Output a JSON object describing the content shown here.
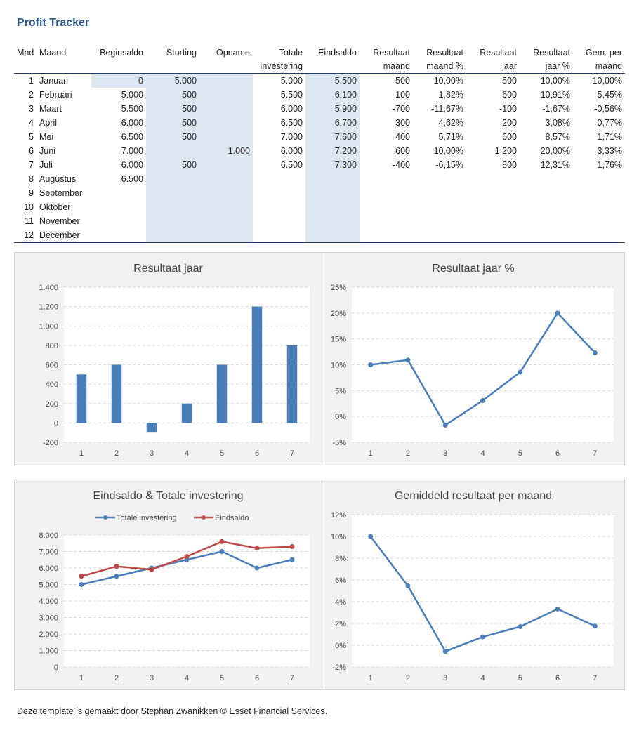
{
  "title": "Profit Tracker",
  "footer": "Deze template is gemaakt door Stephan Zwanikken © Esset Financial Services.",
  "colors": {
    "title": "#2f5a8f",
    "series_blue": "#4a7ebb",
    "series_red": "#be4b48",
    "shade": "#dde7f1"
  },
  "table": {
    "headers_top": [
      "Mnd",
      "Maand",
      "Beginsaldo",
      "Storting",
      "Opname",
      "Totale",
      "Eindsaldo",
      "Resultaat",
      "Resultaat",
      "Resultaat",
      "Resultaat",
      "Gem. per"
    ],
    "headers_bottom": [
      "",
      "",
      "",
      "",
      "",
      "investering",
      "",
      "maand",
      "maand %",
      "jaar",
      "jaar %",
      "maand"
    ],
    "rows": [
      [
        "1",
        "Januari",
        "0",
        "5.000",
        "",
        "5.000",
        "5.500",
        "500",
        "10,00%",
        "500",
        "10,00%",
        "10,00%"
      ],
      [
        "2",
        "Februari",
        "5.000",
        "500",
        "",
        "5.500",
        "6.100",
        "100",
        "1,82%",
        "600",
        "10,91%",
        "5,45%"
      ],
      [
        "3",
        "Maart",
        "5.500",
        "500",
        "",
        "6.000",
        "5.900",
        "-700",
        "-11,67%",
        "-100",
        "-1,67%",
        "-0,56%"
      ],
      [
        "4",
        "April",
        "6.000",
        "500",
        "",
        "6.500",
        "6.700",
        "300",
        "4,62%",
        "200",
        "3,08%",
        "0,77%"
      ],
      [
        "5",
        "Mei",
        "6.500",
        "500",
        "",
        "7.000",
        "7.600",
        "400",
        "5,71%",
        "600",
        "8,57%",
        "1,71%"
      ],
      [
        "6",
        "Juni",
        "7.000",
        "",
        "1.000",
        "6.000",
        "7.200",
        "600",
        "10,00%",
        "1.200",
        "20,00%",
        "3,33%"
      ],
      [
        "7",
        "Juli",
        "6.000",
        "500",
        "",
        "6.500",
        "7.300",
        "-400",
        "-6,15%",
        "800",
        "12,31%",
        "1,76%"
      ],
      [
        "8",
        "Augustus",
        "6.500",
        "",
        "",
        "",
        "",
        "",
        "",
        "",
        "",
        ""
      ],
      [
        "9",
        "September",
        "",
        "",
        "",
        "",
        "",
        "",
        "",
        "",
        "",
        ""
      ],
      [
        "10",
        "Oktober",
        "",
        "",
        "",
        "",
        "",
        "",
        "",
        "",
        "",
        ""
      ],
      [
        "11",
        "November",
        "",
        "",
        "",
        "",
        "",
        "",
        "",
        "",
        "",
        ""
      ],
      [
        "12",
        "December",
        "",
        "",
        "",
        "",
        "",
        "",
        "",
        "",
        "",
        ""
      ]
    ]
  },
  "chart_data": [
    {
      "type": "bar",
      "title": "Resultaat jaar",
      "categories": [
        "1",
        "2",
        "3",
        "4",
        "5",
        "6",
        "7"
      ],
      "values": [
        500,
        600,
        -100,
        200,
        600,
        1200,
        800
      ],
      "ylim": [
        -200,
        1400
      ],
      "yticks": [
        -200,
        0,
        200,
        400,
        600,
        800,
        1000,
        1200,
        1400
      ],
      "ytick_labels": [
        "-200",
        "0",
        "200",
        "400",
        "600",
        "800",
        "1.000",
        "1.200",
        "1.400"
      ],
      "color": "#4a7ebb"
    },
    {
      "type": "line",
      "title": "Resultaat jaar %",
      "categories": [
        "1",
        "2",
        "3",
        "4",
        "5",
        "6",
        "7"
      ],
      "values": [
        10.0,
        10.91,
        -1.67,
        3.08,
        8.57,
        20.0,
        12.31
      ],
      "ylim": [
        -5,
        25
      ],
      "yticks": [
        -5,
        0,
        5,
        10,
        15,
        20,
        25
      ],
      "ytick_labels": [
        "-5%",
        "0%",
        "5%",
        "10%",
        "15%",
        "20%",
        "25%"
      ],
      "color": "#4a7ebb"
    },
    {
      "type": "line",
      "title": "Eindsaldo & Totale investering",
      "categories": [
        "1",
        "2",
        "3",
        "4",
        "5",
        "6",
        "7"
      ],
      "series": [
        {
          "name": "Totale investering",
          "values": [
            5000,
            5500,
            6000,
            6500,
            7000,
            6000,
            6500
          ],
          "color": "#4a7ebb"
        },
        {
          "name": "Eindsaldo",
          "values": [
            5500,
            6100,
            5900,
            6700,
            7600,
            7200,
            7300
          ],
          "color": "#be4b48"
        }
      ],
      "legend": "top",
      "ylim": [
        0,
        8000
      ],
      "yticks": [
        0,
        1000,
        2000,
        3000,
        4000,
        5000,
        6000,
        7000,
        8000
      ],
      "ytick_labels": [
        "0",
        "1.000",
        "2.000",
        "3.000",
        "4.000",
        "5.000",
        "6.000",
        "7.000",
        "8.000"
      ]
    },
    {
      "type": "line",
      "title": "Gemiddeld resultaat per maand",
      "categories": [
        "1",
        "2",
        "3",
        "4",
        "5",
        "6",
        "7"
      ],
      "values": [
        10.0,
        5.45,
        -0.56,
        0.77,
        1.71,
        3.33,
        1.76
      ],
      "ylim": [
        -2,
        12
      ],
      "yticks": [
        -2,
        0,
        2,
        4,
        6,
        8,
        10,
        12
      ],
      "ytick_labels": [
        "-2%",
        "0%",
        "2%",
        "4%",
        "6%",
        "8%",
        "10%",
        "12%"
      ],
      "color": "#4a7ebb"
    }
  ]
}
